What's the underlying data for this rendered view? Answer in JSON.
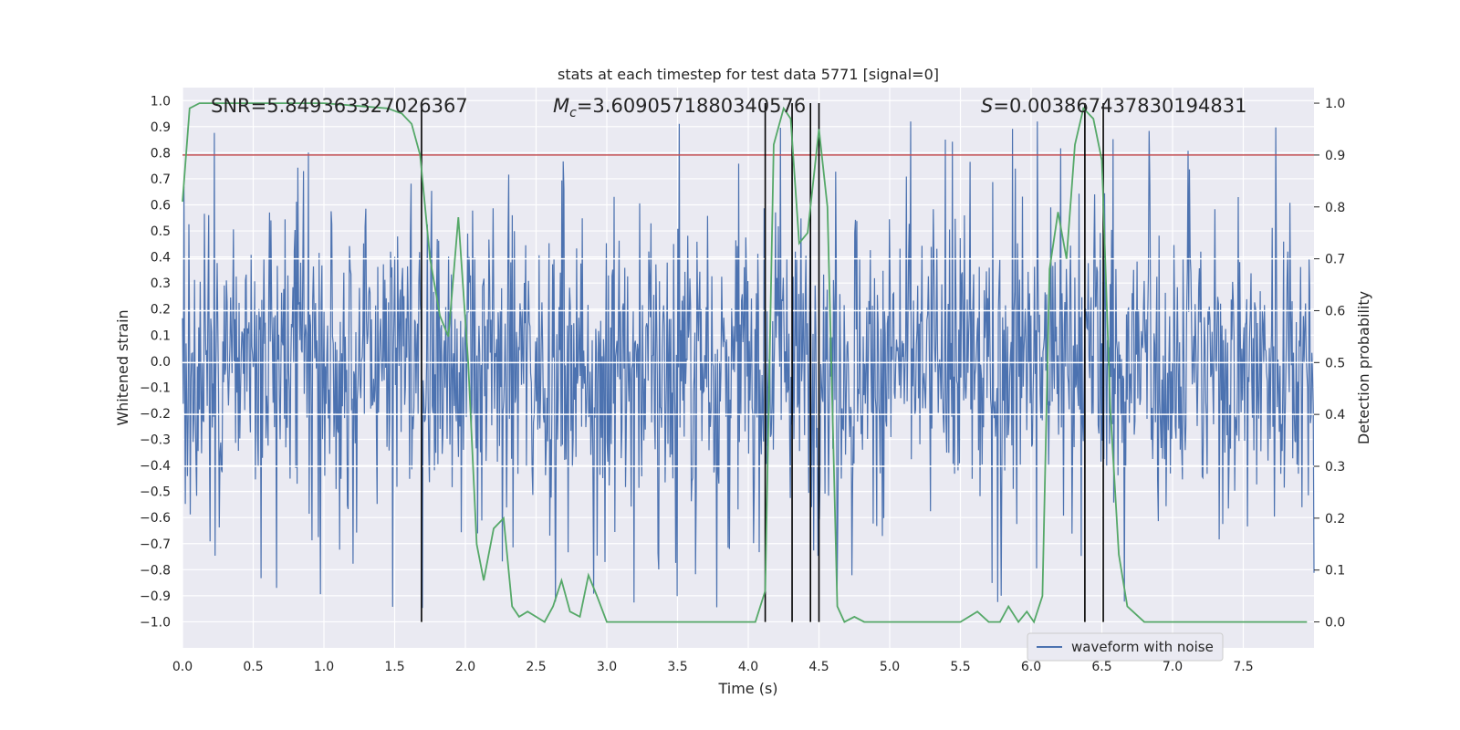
{
  "chart_data": {
    "type": "line",
    "title": "stats at each timestep for test data 5771 [signal=0]",
    "xlabel": "Time (s)",
    "ylabel_left": "Whitened strain",
    "ylabel_right": "Detection probability",
    "xlim": [
      0.0,
      8.0
    ],
    "ylim_left": [
      -1.1,
      1.05
    ],
    "ylim_right": [
      -0.05,
      1.03
    ],
    "x_ticks": [
      0.0,
      0.5,
      1.0,
      1.5,
      2.0,
      2.5,
      3.0,
      3.5,
      4.0,
      4.5,
      5.0,
      5.5,
      6.0,
      6.5,
      7.0,
      7.5
    ],
    "x_tick_labels": [
      "0.0",
      "0.5",
      "1.0",
      "1.5",
      "2.0",
      "2.5",
      "3.0",
      "3.5",
      "4.0",
      "4.5",
      "5.0",
      "5.5",
      "6.0",
      "6.5",
      "7.0",
      "7.5"
    ],
    "y_left_ticks": [
      1.0,
      0.9,
      0.8,
      0.7,
      0.6,
      0.5,
      0.4,
      0.3,
      0.2,
      0.1,
      0.0,
      -0.1,
      -0.2,
      -0.3,
      -0.4,
      -0.5,
      -0.6,
      -0.7,
      -0.8,
      -0.9,
      -1.0
    ],
    "y_left_tick_labels": [
      "1.0",
      "0.9",
      "0.8",
      "0.7",
      "0.6",
      "0.5",
      "0.4",
      "0.3",
      "0.2",
      "0.1",
      "0.0",
      "−0.1",
      "−0.2",
      "−0.3",
      "−0.4",
      "−0.5",
      "−0.6",
      "−0.7",
      "−0.8",
      "−0.9",
      "−1.0"
    ],
    "y_right_ticks": [
      1.0,
      0.9,
      0.8,
      0.7,
      0.6,
      0.5,
      0.4,
      0.3,
      0.2,
      0.1,
      0.0
    ],
    "y_right_tick_labels": [
      "1.0",
      "0.9",
      "0.8",
      "0.7",
      "0.6",
      "0.5",
      "0.4",
      "0.3",
      "0.2",
      "0.1",
      "0.0"
    ],
    "annotations": {
      "snr": "SNR=5.849363327026367",
      "mc_symbol": "M",
      "mc_subscript": "c",
      "mc_value": "=3.6090571880340576",
      "s_symbol": "S",
      "s_value": "=0.003867437830194831"
    },
    "threshold_line": {
      "y": 0.9,
      "axis": "right",
      "color": "#c44e52"
    },
    "vertical_lines": [
      1.69,
      4.12,
      4.31,
      4.44,
      4.5,
      6.38,
      6.51
    ],
    "vertical_line_color": "#000000",
    "waveform": {
      "name": "waveform with noise",
      "color": "#4c72b0",
      "samples": 1600,
      "seed": 5771,
      "amplitude_range": [
        -1.0,
        1.0
      ]
    },
    "probability": {
      "name": "Detection probability",
      "color": "#55a868",
      "x": [
        0.0,
        0.05,
        0.12,
        0.5,
        1.0,
        1.45,
        1.55,
        1.62,
        1.68,
        1.75,
        1.82,
        1.88,
        1.95,
        2.02,
        2.08,
        2.13,
        2.2,
        2.27,
        2.33,
        2.38,
        2.44,
        2.5,
        2.56,
        2.62,
        2.68,
        2.74,
        2.81,
        2.87,
        2.93,
        3.0,
        3.2,
        3.5,
        3.8,
        4.05,
        4.12,
        4.18,
        4.25,
        4.3,
        4.36,
        4.42,
        4.5,
        4.56,
        4.63,
        4.68,
        4.75,
        4.82,
        4.88,
        5.0,
        5.5,
        5.62,
        5.7,
        5.78,
        5.84,
        5.91,
        5.97,
        6.02,
        6.08,
        6.13,
        6.19,
        6.25,
        6.31,
        6.37,
        6.44,
        6.5,
        6.56,
        6.62,
        6.68,
        6.8,
        7.0,
        7.5,
        7.95
      ],
      "y": [
        0.81,
        0.99,
        1.0,
        1.0,
        1.0,
        0.99,
        0.98,
        0.96,
        0.9,
        0.7,
        0.59,
        0.55,
        0.78,
        0.5,
        0.15,
        0.08,
        0.18,
        0.2,
        0.03,
        0.01,
        0.02,
        0.01,
        0.0,
        0.03,
        0.08,
        0.02,
        0.01,
        0.09,
        0.05,
        0.0,
        0.0,
        0.0,
        0.0,
        0.0,
        0.06,
        0.92,
        0.99,
        0.97,
        0.73,
        0.75,
        0.95,
        0.8,
        0.03,
        0.0,
        0.01,
        0.0,
        0.0,
        0.0,
        0.0,
        0.02,
        0.0,
        0.0,
        0.03,
        0.0,
        0.02,
        0.0,
        0.05,
        0.68,
        0.79,
        0.7,
        0.92,
        0.99,
        0.97,
        0.89,
        0.41,
        0.13,
        0.03,
        0.0,
        0.0,
        0.0,
        0.0
      ]
    },
    "legend": {
      "entries": [
        "waveform with noise"
      ],
      "placement": "lower-right"
    },
    "grid": true,
    "background": "#eaeaf2"
  }
}
